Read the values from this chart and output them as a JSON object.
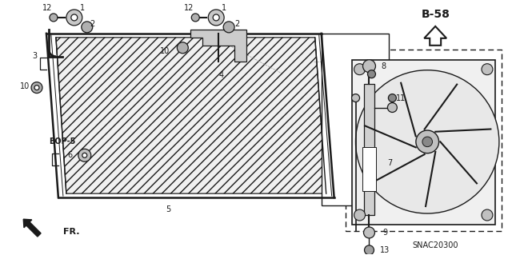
{
  "bg_color": "#ffffff",
  "diagram_code": "SNAC20300",
  "ref_label": "B-58",
  "fr_label": "FR.",
  "font_size_label": 7,
  "font_size_code": 7,
  "font_size_ref": 9,
  "line_color": "#1a1a1a",
  "line_width": 0.9
}
